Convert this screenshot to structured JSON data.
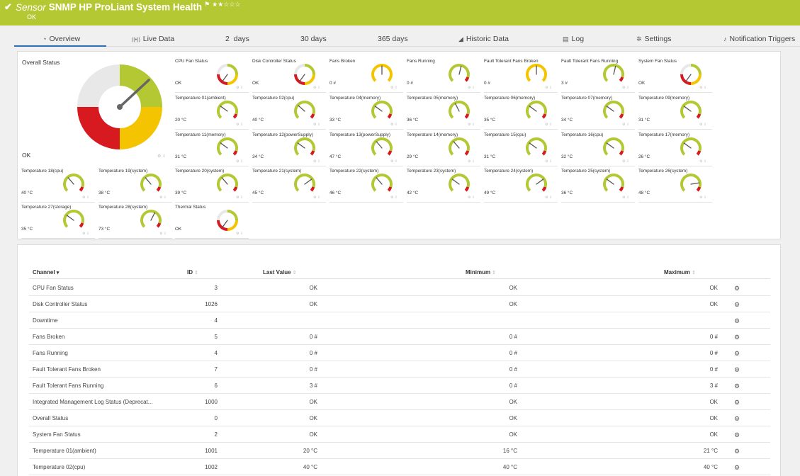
{
  "header": {
    "check_icon": "check-icon",
    "sensor_prefix": "Sensor",
    "title": "SNMP HP ProLiant System Health",
    "flag_icon": "flag-icon",
    "stars": "★★☆☆☆",
    "status": "OK",
    "color": "#b4c833"
  },
  "tabs": [
    {
      "label": "Overview",
      "icon": "◔",
      "icon_name": "overview-icon",
      "active": true
    },
    {
      "label": "Live Data",
      "icon": "((•))",
      "icon_name": "live-data-icon"
    },
    {
      "label": "2  days",
      "icon": "",
      "icon_name": ""
    },
    {
      "label": "30 days",
      "icon": "",
      "icon_name": ""
    },
    {
      "label": "365 days",
      "icon": "",
      "icon_name": ""
    },
    {
      "label": "Historic Data",
      "icon": "◢",
      "icon_name": "chart-icon"
    },
    {
      "label": "Log",
      "icon": "▤",
      "icon_name": "log-icon"
    },
    {
      "label": "Settings",
      "icon": "✲",
      "icon_name": "gear-icon"
    },
    {
      "label": "Notification Triggers",
      "icon": "♪",
      "icon_name": "bell-icon"
    }
  ],
  "overall": {
    "title": "Overall Status",
    "value": "OK",
    "needle_level": 0.67
  },
  "gauges": [
    {
      "name": "CPU Fan Status",
      "value": "OK",
      "level": 0.85,
      "type": "status"
    },
    {
      "name": "Disk Controller Status",
      "value": "OK",
      "level": 0.85,
      "type": "status"
    },
    {
      "name": "Fans Broken",
      "value": "0 #",
      "level": 0.5,
      "type": "warn"
    },
    {
      "name": "Fans Running",
      "value": "0 #",
      "level": 0.55,
      "type": "normal"
    },
    {
      "name": "Fault Tolerant Fans Broken",
      "value": "0 #",
      "level": 0.5,
      "type": "warn"
    },
    {
      "name": "Fault Tolerant Fans Running",
      "value": "3 #",
      "level": 0.55,
      "type": "normal"
    },
    {
      "name": "System Fan Status",
      "value": "OK",
      "level": 0.85,
      "type": "status"
    },
    {
      "name": "Temperature 01(ambient)",
      "value": "20 °C",
      "level": 0.3,
      "type": "normal"
    },
    {
      "name": "Temperature 02(cpu)",
      "value": "40 °C",
      "level": 0.32,
      "type": "normal"
    },
    {
      "name": "Temperature 04(memory)",
      "value": "33 °C",
      "level": 0.3,
      "type": "normal"
    },
    {
      "name": "Temperature 05(memory)",
      "value": "36 °C",
      "level": 0.4,
      "type": "normal"
    },
    {
      "name": "Temperature 06(memory)",
      "value": "35 °C",
      "level": 0.3,
      "type": "normal"
    },
    {
      "name": "Temperature 07(memory)",
      "value": "34 °C",
      "level": 0.3,
      "type": "normal"
    },
    {
      "name": "Temperature 09(memory)",
      "value": "31 °C",
      "level": 0.3,
      "type": "normal"
    },
    {
      "name": "Temperature 11(memory)",
      "value": "31 °C",
      "level": 0.3,
      "type": "normal"
    },
    {
      "name": "Temperature 12(powerSupply)",
      "value": "34 °C",
      "level": 0.3,
      "type": "normal"
    },
    {
      "name": "Temperature 13(powerSupply)",
      "value": "47 °C",
      "level": 0.35,
      "type": "normal"
    },
    {
      "name": "Temperature 14(memory)",
      "value": "29 °C",
      "level": 0.35,
      "type": "normal"
    },
    {
      "name": "Temperature 15(cpu)",
      "value": "31 °C",
      "level": 0.3,
      "type": "normal"
    },
    {
      "name": "Temperature 16(cpu)",
      "value": "32 °C",
      "level": 0.3,
      "type": "normal"
    },
    {
      "name": "Temperature 17(memory)",
      "value": "26 °C",
      "level": 0.3,
      "type": "normal"
    },
    {
      "name": "Temperature 18(cpu)",
      "value": "40 °C",
      "level": 0.35,
      "type": "normal"
    },
    {
      "name": "Temperature 19(system)",
      "value": "38 °C",
      "level": 0.35,
      "type": "normal"
    },
    {
      "name": "Temperature 20(system)",
      "value": "39 °C",
      "level": 0.35,
      "type": "normal"
    },
    {
      "name": "Temperature 21(system)",
      "value": "45 °C",
      "level": 0.7,
      "type": "normal"
    },
    {
      "name": "Temperature 22(system)",
      "value": "46 °C",
      "level": 0.35,
      "type": "normal"
    },
    {
      "name": "Temperature 23(system)",
      "value": "42 °C",
      "level": 0.3,
      "type": "normal"
    },
    {
      "name": "Temperature 24(system)",
      "value": "49 °C",
      "level": 0.7,
      "type": "normal"
    },
    {
      "name": "Temperature 25(system)",
      "value": "36 °C",
      "level": 0.3,
      "type": "normal"
    },
    {
      "name": "Temperature 26(system)",
      "value": "48 °C",
      "level": 0.8,
      "type": "normal"
    },
    {
      "name": "Temperature 27(storage)",
      "value": "35 °C",
      "level": 0.3,
      "type": "normal"
    },
    {
      "name": "Temperature 28(system)",
      "value": "73 °C",
      "level": 0.6,
      "type": "normal"
    },
    {
      "name": "Thermal Status",
      "value": "OK",
      "level": 0.85,
      "type": "status"
    }
  ],
  "table": {
    "headers": {
      "channel": "Channel",
      "id": "ID",
      "last": "Last Value",
      "min": "Minimum",
      "max": "Maximum"
    },
    "rows": [
      {
        "channel": "CPU Fan Status",
        "id": "3",
        "last": "OK",
        "min": "OK",
        "max": "OK"
      },
      {
        "channel": "Disk Controller Status",
        "id": "1026",
        "last": "OK",
        "min": "OK",
        "max": "OK"
      },
      {
        "channel": "Downtime",
        "id": "4",
        "last": "",
        "min": "",
        "max": ""
      },
      {
        "channel": "Fans Broken",
        "id": "5",
        "last": "0 #",
        "min": "0 #",
        "max": "0 #"
      },
      {
        "channel": "Fans Running",
        "id": "4",
        "last": "0 #",
        "min": "0 #",
        "max": "0 #"
      },
      {
        "channel": "Fault Tolerant Fans Broken",
        "id": "7",
        "last": "0 #",
        "min": "0 #",
        "max": "0 #"
      },
      {
        "channel": "Fault Tolerant Fans Running",
        "id": "6",
        "last": "3 #",
        "min": "0 #",
        "max": "3 #"
      },
      {
        "channel": "Integrated Management Log Status (Deprecat...",
        "id": "1000",
        "last": "OK",
        "min": "OK",
        "max": "OK"
      },
      {
        "channel": "Overall Status",
        "id": "0",
        "last": "OK",
        "min": "OK",
        "max": "OK"
      },
      {
        "channel": "System Fan Status",
        "id": "2",
        "last": "OK",
        "min": "OK",
        "max": "OK"
      },
      {
        "channel": "Temperature 01(ambient)",
        "id": "1001",
        "last": "20 °C",
        "min": "16 °C",
        "max": "21 °C"
      },
      {
        "channel": "Temperature 02(cpu)",
        "id": "1002",
        "last": "40 °C",
        "min": "40 °C",
        "max": "40 °C"
      }
    ]
  },
  "colors": {
    "green": "#b4c833",
    "yellow": "#f5c400",
    "red": "#d71920",
    "grey": "#e8e8e8"
  }
}
